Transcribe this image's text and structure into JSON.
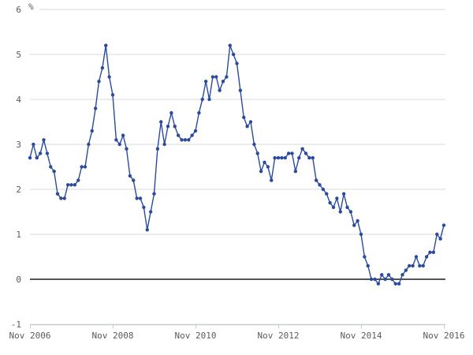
{
  "chart_data": {
    "type": "line",
    "title": "",
    "unit_label": "%",
    "x_axis": {
      "tick_labels": [
        "Nov 2006",
        "Nov 2008",
        "Nov 2010",
        "Nov 2012",
        "Nov 2014",
        "Nov 2016"
      ],
      "tick_month_indices": [
        0,
        24,
        48,
        72,
        96,
        120
      ],
      "start": "Nov 2006",
      "end": "Nov 2016",
      "frequency": "monthly"
    },
    "y_axis": {
      "ticks": [
        6,
        5,
        4,
        3,
        2,
        1,
        0,
        -1
      ],
      "range": [
        -1,
        6
      ]
    },
    "grid": true,
    "legend": false,
    "series": [
      {
        "values": [
          2.7,
          3.0,
          2.7,
          2.8,
          3.1,
          2.8,
          2.5,
          2.4,
          1.9,
          1.8,
          1.8,
          2.1,
          2.1,
          2.1,
          2.2,
          2.5,
          2.5,
          3.0,
          3.3,
          3.8,
          4.4,
          4.7,
          5.2,
          4.5,
          4.1,
          3.1,
          3.0,
          3.2,
          2.9,
          2.3,
          2.2,
          1.8,
          1.8,
          1.6,
          1.1,
          1.5,
          1.9,
          2.9,
          3.5,
          3.0,
          3.4,
          3.7,
          3.4,
          3.2,
          3.1,
          3.1,
          3.1,
          3.2,
          3.3,
          3.7,
          4.0,
          4.4,
          4.0,
          4.5,
          4.5,
          4.2,
          4.4,
          4.5,
          5.2,
          5.0,
          4.8,
          4.2,
          3.6,
          3.4,
          3.5,
          3.0,
          2.8,
          2.4,
          2.6,
          2.5,
          2.2,
          2.7,
          2.7,
          2.7,
          2.7,
          2.8,
          2.8,
          2.4,
          2.7,
          2.9,
          2.8,
          2.7,
          2.7,
          2.2,
          2.1,
          2.0,
          1.9,
          1.7,
          1.6,
          1.8,
          1.5,
          1.9,
          1.6,
          1.5,
          1.2,
          1.3,
          1.0,
          0.5,
          0.3,
          0.0,
          0.0,
          -0.1,
          0.1,
          0.0,
          0.1,
          0.0,
          -0.1,
          -0.1,
          0.1,
          0.2,
          0.3,
          0.3,
          0.5,
          0.3,
          0.3,
          0.5,
          0.6,
          0.6,
          1.0,
          0.9,
          1.2
        ]
      }
    ]
  },
  "colors": {
    "line": "#2a4b9b",
    "marker": "#2a4b9b",
    "grid": "#d8d8d8",
    "zero_line": "#555555",
    "axis": "#c3cbd3",
    "text": "#5a5a5a",
    "background": "#ffffff"
  }
}
